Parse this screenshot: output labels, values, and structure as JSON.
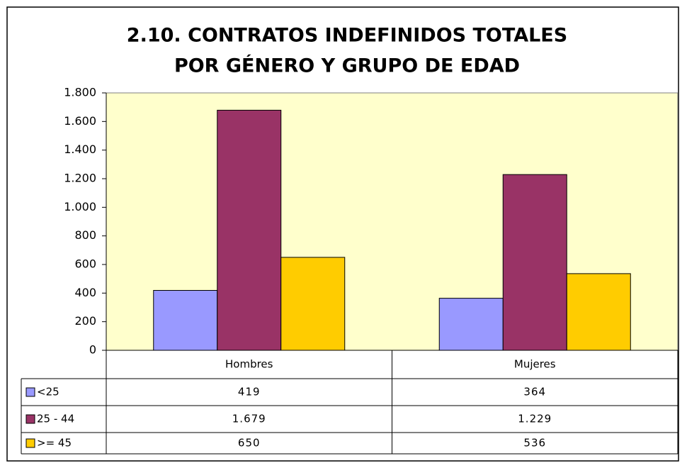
{
  "chart_data": {
    "type": "bar",
    "title": [
      "2.10. CONTRATOS INDEFINIDOS TOTALES",
      "POR GÉNERO Y GRUPO DE EDAD"
    ],
    "categories": [
      "Hombres",
      "Mujeres"
    ],
    "series": [
      {
        "name": "<25",
        "color": "#9999ff",
        "values": [
          419,
          364
        ],
        "value_labels": [
          "419",
          "364"
        ]
      },
      {
        "name": "25 - 44",
        "color": "#993366",
        "values": [
          1679,
          1229
        ],
        "value_labels": [
          "1.679",
          "1.229"
        ]
      },
      {
        "name": ">= 45",
        "color": "#ffcc00",
        "values": [
          650,
          536
        ],
        "value_labels": [
          "650",
          "536"
        ]
      }
    ],
    "ylim": [
      0,
      1800
    ],
    "yticks": [
      0,
      200,
      400,
      600,
      800,
      {
        "value": 1000,
        "label": "1.000"
      },
      {
        "value": 1200,
        "label": "1.200"
      },
      {
        "value": 1400,
        "label": "1.400"
      },
      {
        "value": 1600,
        "label": "1.600"
      },
      {
        "value": 1800,
        "label": "1.800"
      }
    ],
    "plot_background": "#ffffcc"
  }
}
